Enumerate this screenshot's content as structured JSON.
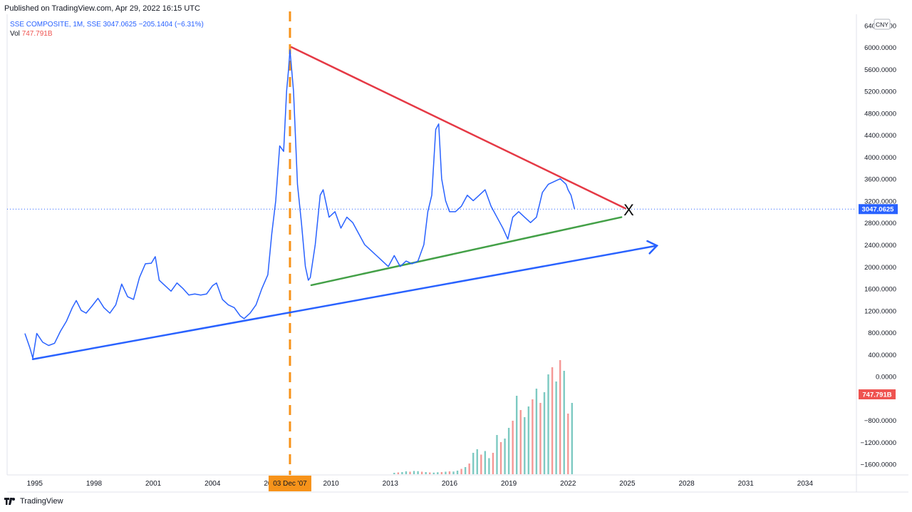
{
  "header": {
    "published": "Published on TradingView.com, Apr 29, 2022 16:15 UTC"
  },
  "legend": {
    "symbol": "SSE COMPOSITE, 1M, SSE",
    "values": "3047.0625  −205.1404 (−6.31%)",
    "vol_label": "Vol",
    "vol_value": "747.791B"
  },
  "footer": {
    "brand": "TradingView"
  },
  "currency": "CNY",
  "colors": {
    "price_line": "#2962ff",
    "resistance": "#e53945",
    "support": "#43a047",
    "long_trend": "#2962ff",
    "vertical_marker": "#f7931a",
    "vol_up": "#26a69a",
    "vol_down": "#ef5350",
    "price_badge": "#2962ff",
    "vol_badge": "#ef5350"
  },
  "chart_data": {
    "type": "line",
    "title": "",
    "xlabel": "",
    "ylabel": "",
    "xlim": [
      1993.6,
      2036.6
    ],
    "ylim": [
      -1800,
      6600
    ],
    "x_ticks": [
      "1995",
      "1998",
      "2001",
      "2004",
      "2007",
      "2010",
      "2013",
      "2016",
      "2019",
      "2022",
      "2025",
      "2028",
      "2031",
      "2034"
    ],
    "y_ticks": [
      "6400.0000",
      "6000.0000",
      "5600.0000",
      "5200.0000",
      "4800.0000",
      "4400.0000",
      "4000.0000",
      "3600.0000",
      "3200.0000",
      "2800.0000",
      "2400.0000",
      "2000.0000",
      "1600.0000",
      "1200.0000",
      "800.0000",
      "400.0000",
      "0.0000",
      "−800.0000",
      "−1200.0000",
      "−1600.0000"
    ],
    "last_price": 3047.0625,
    "last_price_label": "3047.0625",
    "vol_label": "747.791B",
    "marker_date_label": "03 Dec '07",
    "marker_x": 2007.92,
    "annotation_text": "X",
    "annotation_point": {
      "x": 2025.0,
      "y": 3040
    },
    "series": [
      {
        "name": "SSE COMPOSITE",
        "x": [
          1994.5,
          1994.75,
          1994.9,
          1995.1,
          1995.4,
          1995.7,
          1996.0,
          1996.3,
          1996.6,
          1996.9,
          1997.1,
          1997.35,
          1997.6,
          1997.9,
          1998.2,
          1998.5,
          1998.8,
          1999.1,
          1999.4,
          1999.7,
          2000.0,
          2000.3,
          2000.6,
          2000.9,
          2001.1,
          2001.3,
          2001.6,
          2001.9,
          2002.2,
          2002.5,
          2002.8,
          2003.1,
          2003.4,
          2003.7,
          2004.0,
          2004.2,
          2004.5,
          2004.8,
          2005.1,
          2005.4,
          2005.6,
          2005.9,
          2006.2,
          2006.5,
          2006.8,
          2007.0,
          2007.2,
          2007.4,
          2007.6,
          2007.75,
          2007.85,
          2007.92,
          2008.1,
          2008.3,
          2008.5,
          2008.7,
          2008.85,
          2008.95,
          2009.2,
          2009.45,
          2009.6,
          2009.9,
          2010.2,
          2010.5,
          2010.8,
          2011.1,
          2011.4,
          2011.7,
          2012.0,
          2012.3,
          2012.6,
          2012.9,
          2013.2,
          2013.5,
          2013.8,
          2014.1,
          2014.4,
          2014.7,
          2014.9,
          2015.1,
          2015.3,
          2015.45,
          2015.6,
          2015.8,
          2016.0,
          2016.3,
          2016.6,
          2016.9,
          2017.2,
          2017.5,
          2017.8,
          2018.1,
          2018.4,
          2018.7,
          2018.95,
          2019.2,
          2019.5,
          2019.8,
          2020.1,
          2020.4,
          2020.7,
          2021.0,
          2021.3,
          2021.6,
          2021.9,
          2022.0,
          2022.15,
          2022.33
        ],
        "y": [
          780,
          520,
          330,
          780,
          620,
          560,
          600,
          820,
          1000,
          1250,
          1380,
          1200,
          1150,
          1280,
          1420,
          1250,
          1150,
          1300,
          1680,
          1450,
          1400,
          1800,
          2050,
          2060,
          2180,
          1750,
          1650,
          1550,
          1700,
          1600,
          1480,
          1500,
          1480,
          1500,
          1650,
          1700,
          1400,
          1300,
          1250,
          1100,
          1050,
          1150,
          1300,
          1600,
          1850,
          2600,
          3200,
          4200,
          4100,
          5200,
          5600,
          5950,
          5200,
          3500,
          2800,
          2000,
          1750,
          1800,
          2400,
          3300,
          3400,
          2900,
          3000,
          2700,
          2900,
          2800,
          2600,
          2400,
          2300,
          2200,
          2100,
          2000,
          2200,
          2000,
          2100,
          2050,
          2100,
          2400,
          3000,
          3300,
          4500,
          4600,
          3600,
          3200,
          3000,
          3000,
          3100,
          3300,
          3200,
          3300,
          3400,
          3100,
          2900,
          2700,
          2500,
          2900,
          3000,
          2900,
          2800,
          2900,
          3350,
          3500,
          3550,
          3600,
          3500,
          3400,
          3300,
          3047
        ]
      }
    ],
    "trendlines": [
      {
        "name": "",
        "x": [
          2008.0,
          2024.9
        ],
        "y": [
          6000,
          3060
        ]
      },
      {
        "name": "",
        "x": [
          2009.0,
          2024.7
        ],
        "y": [
          1660,
          2900
        ]
      },
      {
        "name": "",
        "x": [
          1994.9,
          2026.5
        ],
        "y": [
          310,
          2380
        ]
      }
    ],
    "volume": {
      "unit": "B",
      "x": [
        2013.2,
        2013.4,
        2013.6,
        2013.8,
        2014.0,
        2014.2,
        2014.4,
        2014.6,
        2014.8,
        2015.0,
        2015.2,
        2015.4,
        2015.6,
        2015.8,
        2016.0,
        2016.2,
        2016.4,
        2016.6,
        2016.8,
        2017.0,
        2017.2,
        2017.4,
        2017.6,
        2017.8,
        2018.0,
        2018.2,
        2018.4,
        2018.6,
        2018.8,
        2019.0,
        2019.2,
        2019.4,
        2019.6,
        2019.8,
        2020.0,
        2020.2,
        2020.4,
        2020.6,
        2020.8,
        2021.0,
        2021.2,
        2021.4,
        2021.6,
        2021.8,
        2022.0,
        2022.2
      ],
      "up": [
        true,
        false,
        true,
        true,
        false,
        true,
        true,
        false,
        true,
        false,
        true,
        true,
        false,
        true,
        false,
        true,
        true,
        false,
        true,
        false,
        true,
        true,
        false,
        true,
        true,
        false,
        true,
        false,
        true,
        true,
        false,
        true,
        false,
        true,
        true,
        false,
        true,
        false,
        true,
        true,
        false,
        true,
        false,
        true,
        false,
        true
      ],
      "values": [
        40,
        50,
        60,
        80,
        70,
        90,
        85,
        70,
        60,
        50,
        45,
        55,
        60,
        70,
        80,
        75,
        100,
        150,
        200,
        300,
        600,
        700,
        550,
        650,
        450,
        600,
        1100,
        900,
        1000,
        1300,
        1500,
        2200,
        1800,
        1600,
        1900,
        2100,
        2400,
        2000,
        2300,
        2800,
        3000,
        2600,
        3200,
        2900,
        1700,
        2000
      ]
    }
  }
}
